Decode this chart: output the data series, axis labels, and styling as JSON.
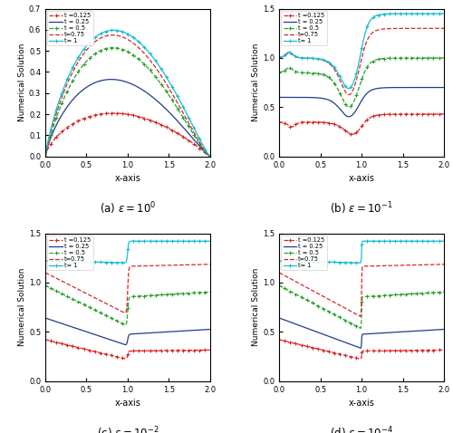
{
  "subplots": [
    {
      "label": "(a) $\\varepsilon = 10^{0}$",
      "ylim": [
        0,
        0.7
      ],
      "yticks": [
        0,
        0.1,
        0.2,
        0.3,
        0.4,
        0.5,
        0.6,
        0.7
      ],
      "xlim": [
        0,
        2
      ],
      "xticks": [
        0,
        0.5,
        1.0,
        1.5,
        2.0
      ],
      "legend_loc": "upper left"
    },
    {
      "label": "(b) $\\varepsilon = 10^{-1}$",
      "ylim": [
        0,
        1.5
      ],
      "yticks": [
        0,
        0.5,
        1.0,
        1.5
      ],
      "xlim": [
        0,
        2
      ],
      "xticks": [
        0,
        0.5,
        1.0,
        1.5,
        2.0
      ],
      "legend_loc": "upper left"
    },
    {
      "label": "(c) $\\varepsilon = 10^{-2}$",
      "ylim": [
        0,
        1.5
      ],
      "yticks": [
        0,
        0.5,
        1.0,
        1.5
      ],
      "xlim": [
        0,
        2
      ],
      "xticks": [
        0,
        0.5,
        1.0,
        1.5,
        2.0
      ],
      "legend_loc": "upper left"
    },
    {
      "label": "(d) $\\varepsilon = 10^{-4}$",
      "ylim": [
        0,
        1.5
      ],
      "yticks": [
        0,
        0.5,
        1.0,
        1.5
      ],
      "xlim": [
        0,
        2
      ],
      "xticks": [
        0,
        0.5,
        1.0,
        1.5,
        2.0
      ],
      "legend_loc": "upper left"
    }
  ],
  "legend_labels": [
    "t =0.125",
    "t = 0.25",
    "t = 0.5",
    "t=0.75",
    "t= 1"
  ],
  "colors": [
    "#d62728",
    "#1f3d8a",
    "#2ca02c",
    "#d62728",
    "#17becf"
  ],
  "linestyles": [
    "--",
    "-",
    "--",
    "--",
    "-"
  ],
  "markers": [
    "+",
    null,
    "+",
    null,
    "+"
  ],
  "ylabel": "Numerical Solution",
  "xlabel": "x-axis"
}
